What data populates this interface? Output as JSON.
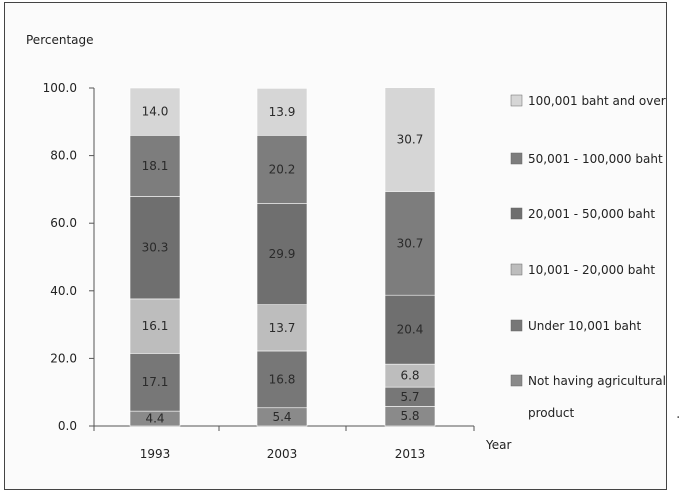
{
  "chart_data": {
    "type": "bar",
    "stacked": true,
    "ylabel": "Percentage",
    "xlabel": "Year",
    "ylim": [
      0,
      100
    ],
    "yticks": [
      "0.0",
      "20.0",
      "40.0",
      "60.0",
      "80.0",
      "100.0"
    ],
    "categories": [
      "1993",
      "2003",
      "2013"
    ],
    "legend_position": "right",
    "grid": false,
    "series": [
      {
        "name": "Not having agricultural product",
        "color": "#8a8a8a",
        "values": [
          4.4,
          5.4,
          5.8
        ],
        "labels": [
          "4.4",
          "5.4",
          "5.8"
        ]
      },
      {
        "name": "Under 10,001 baht",
        "color": "#777777",
        "values": [
          17.1,
          16.8,
          5.7
        ],
        "labels": [
          "17.1",
          "16.8",
          "5.7"
        ]
      },
      {
        "name": "10,001 - 20,000 baht",
        "color": "#bdbdbd",
        "values": [
          16.1,
          13.7,
          6.8
        ],
        "labels": [
          "16.1",
          "13.7",
          "6.8"
        ]
      },
      {
        "name": "20,001 - 50,000 baht",
        "color": "#6f6f6f",
        "values": [
          30.3,
          29.9,
          20.4
        ],
        "labels": [
          "30.3",
          "29.9",
          "20.4"
        ]
      },
      {
        "name": "50,001 - 100,000 baht",
        "color": "#7d7d7d",
        "values": [
          18.1,
          20.2,
          30.7
        ],
        "labels": [
          "18.1",
          "20.2",
          "30.7"
        ]
      },
      {
        "name": "100,001 baht and over",
        "color": "#d6d6d6",
        "values": [
          14.0,
          13.9,
          30.7
        ],
        "labels": [
          "14.0",
          "13.9",
          "30.7"
        ]
      }
    ],
    "legend_lines": [
      [
        "100,001  baht and over"
      ],
      [
        "50,001  -  100,000 baht"
      ],
      [
        "20,001  -  50,000 baht"
      ],
      [
        "10,001  -  20,000 baht"
      ],
      [
        "Under 10,001 baht"
      ],
      [
        "Not having agricultural",
        "product"
      ]
    ]
  }
}
